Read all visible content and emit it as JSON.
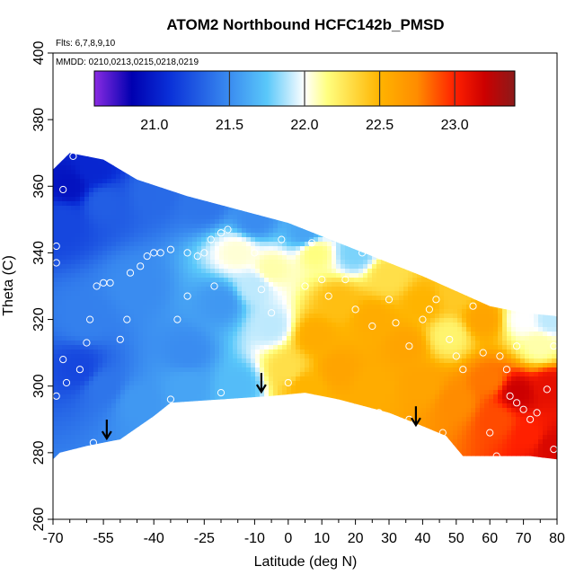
{
  "chart_data": {
    "type": "heatmap",
    "title": "ATOM2 Northbound HCFC142b_PMSD",
    "flights_note": "Flts: 6,7,8,9,10",
    "dates_note": "MMDD: 0210,0213,0215,0218,0219",
    "xlabel": "Latitude (deg N)",
    "ylabel": "Theta (C)",
    "xlim": [
      -70,
      80
    ],
    "ylim": [
      260,
      400
    ],
    "x_ticks": [
      -70,
      -55,
      -40,
      -25,
      -10,
      0,
      10,
      20,
      30,
      40,
      50,
      60,
      70,
      80
    ],
    "x_minor_ticks": [
      -65,
      -60,
      -50,
      -45,
      -35,
      -30,
      -20,
      -15,
      -5,
      5,
      15,
      25,
      35,
      45,
      55,
      65,
      75
    ],
    "y_ticks": [
      260,
      280,
      300,
      320,
      340,
      360,
      380,
      400
    ],
    "colorbar": {
      "range": [
        20.6,
        23.4
      ],
      "ticks": [
        21.0,
        21.5,
        22.0,
        22.5,
        23.0
      ],
      "dividers": [
        21.5,
        22.0,
        22.5,
        23.0
      ],
      "stops": [
        {
          "v": 20.6,
          "color": "#8a2be2"
        },
        {
          "v": 20.85,
          "color": "#0000b0"
        },
        {
          "v": 21.1,
          "color": "#0a30d8"
        },
        {
          "v": 21.5,
          "color": "#3a8cf0"
        },
        {
          "v": 21.75,
          "color": "#5ac8fa"
        },
        {
          "v": 22.0,
          "color": "#ffffff"
        },
        {
          "v": 22.15,
          "color": "#ffff80"
        },
        {
          "v": 22.5,
          "color": "#ffb400"
        },
        {
          "v": 22.75,
          "color": "#ff8c00"
        },
        {
          "v": 23.0,
          "color": "#ff2000"
        },
        {
          "v": 23.2,
          "color": "#cc0000"
        },
        {
          "v": 23.4,
          "color": "#8b1a1a"
        }
      ]
    },
    "domain": {
      "top": [
        [
          -70,
          365
        ],
        [
          -65,
          370
        ],
        [
          -55,
          368
        ],
        [
          -45,
          362
        ],
        [
          -30,
          357
        ],
        [
          -15,
          353
        ],
        [
          0,
          349
        ],
        [
          20,
          341
        ],
        [
          40,
          333
        ],
        [
          60,
          324
        ],
        [
          70,
          322
        ],
        [
          80,
          321
        ]
      ],
      "bottom": [
        [
          -70,
          278
        ],
        [
          -68,
          280
        ],
        [
          -60,
          282
        ],
        [
          -50,
          284
        ],
        [
          -40,
          291
        ],
        [
          -35,
          295
        ],
        [
          -20,
          296
        ],
        [
          -5,
          297
        ],
        [
          5,
          298
        ],
        [
          15,
          296
        ],
        [
          30,
          292
        ],
        [
          40,
          288
        ],
        [
          47,
          285
        ],
        [
          52,
          279
        ],
        [
          60,
          279
        ],
        [
          72,
          279
        ],
        [
          80,
          278
        ]
      ]
    },
    "field_anchors": [
      {
        "lat": -65,
        "theta": 360,
        "value": 20.95
      },
      {
        "lat": -58,
        "theta": 365,
        "value": 21.05
      },
      {
        "lat": -67,
        "theta": 350,
        "value": 21.2
      },
      {
        "lat": -55,
        "theta": 355,
        "value": 21.3
      },
      {
        "lat": -40,
        "theta": 358,
        "value": 21.35
      },
      {
        "lat": -25,
        "theta": 355,
        "value": 21.4
      },
      {
        "lat": -10,
        "theta": 350,
        "value": 21.5
      },
      {
        "lat": 5,
        "theta": 346,
        "value": 21.6
      },
      {
        "lat": 20,
        "theta": 340,
        "value": 21.8
      },
      {
        "lat": -60,
        "theta": 320,
        "value": 21.45
      },
      {
        "lat": -45,
        "theta": 330,
        "value": 21.5
      },
      {
        "lat": -30,
        "theta": 310,
        "value": 21.5
      },
      {
        "lat": -20,
        "theta": 325,
        "value": 21.55
      },
      {
        "lat": -55,
        "theta": 300,
        "value": 21.4
      },
      {
        "lat": -62,
        "theta": 305,
        "value": 21.2
      },
      {
        "lat": -45,
        "theta": 295,
        "value": 21.55
      },
      {
        "lat": -30,
        "theta": 300,
        "value": 21.6
      },
      {
        "lat": -15,
        "theta": 300,
        "value": 21.7
      },
      {
        "lat": -10,
        "theta": 330,
        "value": 21.9
      },
      {
        "lat": -15,
        "theta": 340,
        "value": 22.05
      },
      {
        "lat": -5,
        "theta": 335,
        "value": 22.1
      },
      {
        "lat": 8,
        "theta": 340,
        "value": 22.15
      },
      {
        "lat": -5,
        "theta": 318,
        "value": 21.9
      },
      {
        "lat": 0,
        "theta": 305,
        "value": 22.3
      },
      {
        "lat": 5,
        "theta": 300,
        "value": 22.5
      },
      {
        "lat": 8,
        "theta": 315,
        "value": 22.55
      },
      {
        "lat": 15,
        "theta": 325,
        "value": 22.45
      },
      {
        "lat": 15,
        "theta": 305,
        "value": 22.6
      },
      {
        "lat": 25,
        "theta": 320,
        "value": 22.55
      },
      {
        "lat": 25,
        "theta": 300,
        "value": 22.55
      },
      {
        "lat": 30,
        "theta": 333,
        "value": 22.3
      },
      {
        "lat": 35,
        "theta": 312,
        "value": 22.6
      },
      {
        "lat": 40,
        "theta": 300,
        "value": 22.6
      },
      {
        "lat": 40,
        "theta": 325,
        "value": 22.5
      },
      {
        "lat": 48,
        "theta": 315,
        "value": 22.2
      },
      {
        "lat": 50,
        "theta": 328,
        "value": 22.4
      },
      {
        "lat": 50,
        "theta": 295,
        "value": 22.75
      },
      {
        "lat": 58,
        "theta": 320,
        "value": 22.6
      },
      {
        "lat": 60,
        "theta": 302,
        "value": 22.8
      },
      {
        "lat": 62,
        "theta": 290,
        "value": 22.9
      },
      {
        "lat": 68,
        "theta": 298,
        "value": 23.2
      },
      {
        "lat": 72,
        "theta": 285,
        "value": 23.0
      },
      {
        "lat": 78,
        "theta": 300,
        "value": 23.1
      },
      {
        "lat": 78,
        "theta": 282,
        "value": 23.15
      },
      {
        "lat": 70,
        "theta": 320,
        "value": 22.0
      },
      {
        "lat": 78,
        "theta": 320,
        "value": 21.9
      },
      {
        "lat": 75,
        "theta": 312,
        "value": 22.1
      }
    ],
    "sample_points": [
      [
        -64,
        369
      ],
      [
        -67,
        359
      ],
      [
        -69,
        342
      ],
      [
        -69,
        337
      ],
      [
        -67,
        308
      ],
      [
        -66,
        301
      ],
      [
        -69,
        297
      ],
      [
        -66,
        278
      ],
      [
        -60,
        313
      ],
      [
        -62,
        305
      ],
      [
        -58,
        283
      ],
      [
        -59,
        320
      ],
      [
        -57,
        330
      ],
      [
        -55,
        331
      ],
      [
        -53,
        331
      ],
      [
        -50,
        314
      ],
      [
        -48,
        320
      ],
      [
        -47,
        334
      ],
      [
        -44,
        336
      ],
      [
        -42,
        339
      ],
      [
        -40,
        340
      ],
      [
        -38,
        340
      ],
      [
        -35,
        341
      ],
      [
        -30,
        340
      ],
      [
        -27,
        339
      ],
      [
        -25,
        340
      ],
      [
        -23,
        344
      ],
      [
        -20,
        346
      ],
      [
        -18,
        347
      ],
      [
        -22,
        330
      ],
      [
        -30,
        327
      ],
      [
        -33,
        320
      ],
      [
        -35,
        296
      ],
      [
        -20,
        298
      ],
      [
        -10,
        340
      ],
      [
        -8,
        329
      ],
      [
        -5,
        322
      ],
      [
        -2,
        344
      ],
      [
        0,
        301
      ],
      [
        5,
        330
      ],
      [
        7,
        343
      ],
      [
        10,
        332
      ],
      [
        12,
        327
      ],
      [
        13,
        295
      ],
      [
        17,
        332
      ],
      [
        20,
        323
      ],
      [
        22,
        340
      ],
      [
        25,
        318
      ],
      [
        27,
        292
      ],
      [
        30,
        326
      ],
      [
        32,
        319
      ],
      [
        36,
        312
      ],
      [
        36,
        290
      ],
      [
        40,
        320
      ],
      [
        42,
        323
      ],
      [
        44,
        326
      ],
      [
        46,
        286
      ],
      [
        48,
        314
      ],
      [
        50,
        309
      ],
      [
        52,
        305
      ],
      [
        55,
        324
      ],
      [
        58,
        310
      ],
      [
        60,
        286
      ],
      [
        63,
        309
      ],
      [
        65,
        305
      ],
      [
        66,
        297
      ],
      [
        68,
        295
      ],
      [
        68,
        312
      ],
      [
        70,
        293
      ],
      [
        72,
        290
      ],
      [
        74,
        292
      ],
      [
        77,
        299
      ],
      [
        80,
        322
      ],
      [
        79,
        312
      ],
      [
        79,
        281
      ],
      [
        62,
        279
      ]
    ],
    "arrows": [
      {
        "lat": -54,
        "theta": 284
      },
      {
        "lat": -8,
        "theta": 298
      },
      {
        "lat": 38,
        "theta": 288
      }
    ]
  }
}
